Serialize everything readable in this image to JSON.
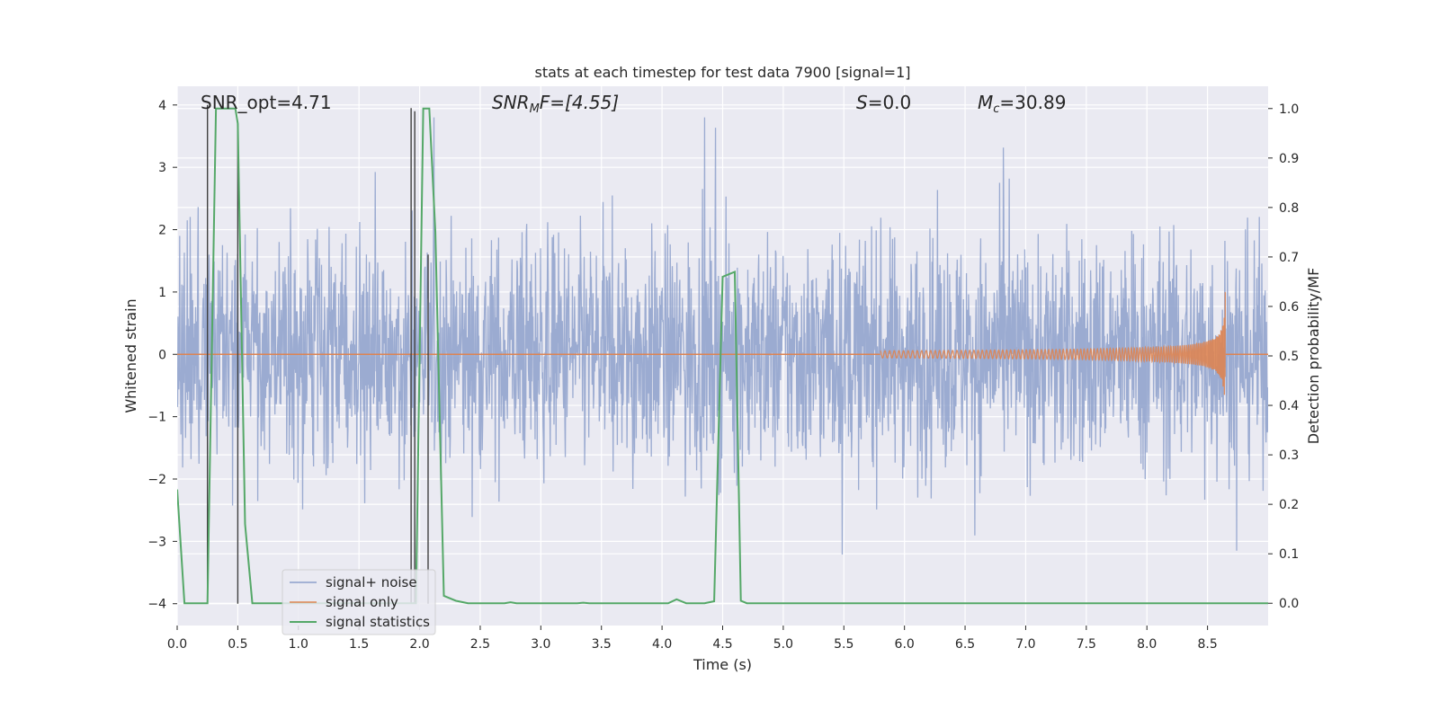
{
  "chart_data": {
    "type": "line",
    "title": "stats at each timestep for test data 7900 [signal=1]",
    "xlabel": "Time (s)",
    "ylabel": "Whitened strain",
    "y2label": "Detection probability/MF",
    "xlim": [
      0.0,
      9.0
    ],
    "ylim": [
      -4.35,
      4.3
    ],
    "y2lim": [
      -0.045,
      1.045
    ],
    "x_ticks": [
      0.0,
      0.5,
      1.0,
      1.5,
      2.0,
      2.5,
      3.0,
      3.5,
      4.0,
      4.5,
      5.0,
      5.5,
      6.0,
      6.5,
      7.0,
      7.5,
      8.0,
      8.5
    ],
    "x_tick_labels": [
      "0.0",
      "0.5",
      "1.0",
      "1.5",
      "2.0",
      "2.5",
      "3.0",
      "3.5",
      "4.0",
      "4.5",
      "5.0",
      "5.5",
      "6.0",
      "6.5",
      "7.0",
      "7.5",
      "8.0",
      "8.5"
    ],
    "y_ticks": [
      -4,
      -3,
      -2,
      -1,
      0,
      1,
      2,
      3,
      4
    ],
    "y_tick_labels": [
      "−4",
      "−3",
      "−2",
      "−1",
      "0",
      "1",
      "2",
      "3",
      "4"
    ],
    "y2_ticks": [
      0.0,
      0.1,
      0.2,
      0.3,
      0.4,
      0.5,
      0.6,
      0.7,
      0.8,
      0.9,
      1.0
    ],
    "y2_tick_labels": [
      "0.0",
      "0.1",
      "0.2",
      "0.3",
      "0.4",
      "0.5",
      "0.6",
      "0.7",
      "0.8",
      "0.9",
      "1.0"
    ],
    "grid": true,
    "legend_position": "lower-left",
    "annotations": {
      "snr_opt": "SNR_opt=4.71",
      "snr_mf_main": "SNR",
      "snr_mf_sub": "M",
      "snr_mf_rest": "F=[4.55]",
      "s_main": "S",
      "s_rest": "=0.0",
      "mc_main": "M",
      "mc_sub": "c",
      "mc_rest": "=30.89"
    },
    "series": [
      {
        "name": "signal+ noise",
        "color": "#8da0cb",
        "axis": "left",
        "description": "dense whitened noise, approx. ±2 sigma band with spikes up to ±3.8",
        "t_range": [
          0.0,
          9.0
        ],
        "amplitude_typical": 1.5,
        "amplitude_peak": 3.8
      },
      {
        "name": "signal only",
        "color": "#dd8452",
        "axis": "left",
        "description": "chirp signal, growing amplitude, peak at merger",
        "t_range": [
          5.8,
          8.65
        ],
        "merger_time": 8.65,
        "peak_amplitude": 1.1
      },
      {
        "name": "signal statistics",
        "color": "#55a868",
        "axis": "right",
        "x": [
          0.0,
          0.06,
          0.24,
          0.25,
          0.32,
          0.48,
          0.5,
          0.56,
          0.62,
          1.9,
          1.97,
          2.03,
          2.08,
          2.13,
          2.2,
          2.3,
          2.4,
          2.5,
          2.7,
          2.75,
          2.8,
          3.3,
          3.35,
          3.4,
          4.05,
          4.12,
          4.2,
          4.35,
          4.43,
          4.5,
          4.6,
          4.65,
          4.7,
          9.0
        ],
        "values": [
          0.23,
          0.0,
          0.0,
          0.0,
          1.0,
          1.0,
          0.97,
          0.16,
          0.0,
          0.0,
          0.0,
          1.0,
          1.0,
          0.75,
          0.015,
          0.005,
          0.0,
          0.0,
          0.0,
          0.002,
          0.0,
          0.0,
          0.001,
          0.0,
          0.0,
          0.008,
          0.0,
          0.0,
          0.004,
          0.66,
          0.67,
          0.005,
          0.0,
          0.0
        ]
      }
    ],
    "vertical_markers": [
      {
        "x": 0.25,
        "ymin": -4.0,
        "ymax": 4.0
      },
      {
        "x": 0.5,
        "ymin": -4.0,
        "ymax": 3.7
      },
      {
        "x": 1.93,
        "ymin": -4.0,
        "ymax": 3.95
      },
      {
        "x": 1.96,
        "ymin": -4.0,
        "ymax": 3.9
      },
      {
        "x": 2.07,
        "ymin": -4.0,
        "ymax": 1.6
      }
    ],
    "colors": {
      "background": "#eaeaf2",
      "grid": "#ffffff",
      "marker": "#404040",
      "legend_bg": "#eaeaf2",
      "legend_edge": "#cccccc"
    }
  }
}
